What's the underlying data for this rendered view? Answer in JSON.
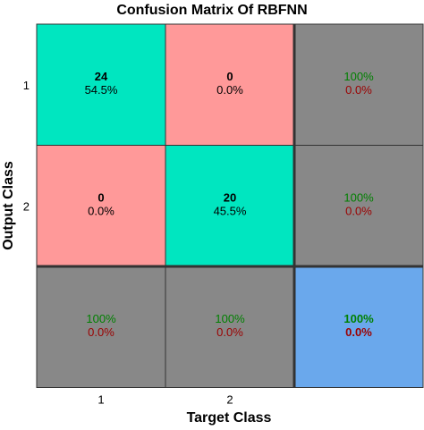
{
  "chart_data": {
    "type": "heatmap",
    "title": "Confusion Matrix Of RBFNN",
    "xlabel": "Target Class",
    "ylabel": "Output Class",
    "x_ticks": [
      "1",
      "2"
    ],
    "y_ticks": [
      "1",
      "2"
    ],
    "grid": [
      [
        {
          "count": "24",
          "percent": "54.5%",
          "kind": "correct"
        },
        {
          "count": "0",
          "percent": "0.0%",
          "kind": "error"
        },
        {
          "good": "100%",
          "bad": "0.0%",
          "kind": "summary"
        }
      ],
      [
        {
          "count": "0",
          "percent": "0.0%",
          "kind": "error"
        },
        {
          "count": "20",
          "percent": "45.5%",
          "kind": "correct"
        },
        {
          "good": "100%",
          "bad": "0.0%",
          "kind": "summary"
        }
      ],
      [
        {
          "good": "100%",
          "bad": "0.0%",
          "kind": "summary"
        },
        {
          "good": "100%",
          "bad": "0.0%",
          "kind": "summary"
        },
        {
          "good": "100%",
          "bad": "0.0%",
          "kind": "total"
        }
      ]
    ],
    "colors": {
      "correct": "#00e6c0",
      "error": "#ff9999",
      "summary": "#888888",
      "total": "#6aa8ec",
      "good_text": "#008000",
      "bad_text": "#9b0000"
    }
  }
}
